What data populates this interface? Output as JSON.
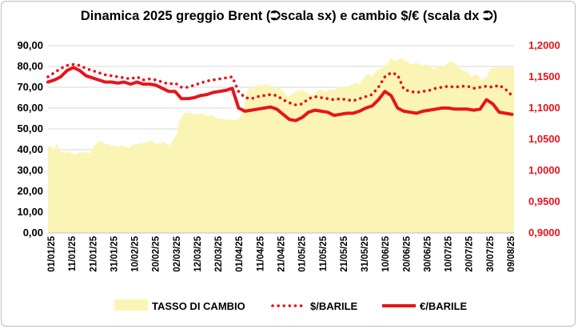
{
  "chart_data": {
    "type": "area",
    "title": "Dinamica 2025 greggio Brent (⮊scala sx) e cambio $/€ (scala dx ⮊)",
    "left_axis": {
      "min": 0,
      "max": 90,
      "step": 10,
      "ticks": [
        "0,00",
        "10,00",
        "20,00",
        "30,00",
        "40,00",
        "50,00",
        "60,00",
        "70,00",
        "80,00",
        "90,00"
      ]
    },
    "right_axis": {
      "min": 0.9,
      "max": 1.2,
      "step": 0.05,
      "ticks": [
        "0,9000",
        "0,9500",
        "1,0000",
        "1,0500",
        "1,1000",
        "1,1500",
        "1,2000"
      ],
      "color": "#e8141b"
    },
    "x_tick_labels": [
      "01/01/25",
      "11/01/25",
      "21/01/25",
      "31/01/25",
      "10/02/25",
      "20/02/25",
      "02/03/25",
      "12/03/25",
      "22/03/25",
      "01/04/25",
      "11/04/25",
      "21/04/25",
      "01/05/25",
      "11/05/25",
      "21/05/25",
      "31/05/25",
      "10/06/25",
      "20/06/25",
      "30/06/25",
      "10/07/25",
      "20/07/25",
      "30/07/25",
      "09/08/25"
    ],
    "x_range_days": [
      0,
      220
    ],
    "grid": true,
    "legend_position": "bottom",
    "series": [
      {
        "name": "TASSO DI CAMBIO",
        "axis": "right",
        "style": "area",
        "color": "#fbf5b5",
        "x_days": [
          0,
          2,
          3,
          4,
          6,
          8,
          9,
          10,
          13,
          14,
          17,
          20,
          22,
          24,
          25,
          27,
          28,
          30,
          31,
          33,
          35,
          38,
          40,
          42,
          44,
          45,
          47,
          49,
          51,
          53,
          55,
          57,
          59,
          61,
          62,
          63,
          64,
          65,
          67,
          70,
          73,
          75,
          77,
          79,
          81,
          82,
          84,
          86,
          88,
          90,
          92,
          93,
          94,
          95,
          97,
          99,
          100,
          103,
          105,
          107,
          109,
          111,
          113,
          116,
          118,
          120,
          123,
          125,
          127,
          129,
          131,
          133,
          135,
          137,
          140,
          143,
          145,
          147,
          149,
          151,
          153,
          155,
          158,
          160,
          162,
          164,
          166,
          168,
          170,
          172,
          174,
          176,
          178,
          180,
          182,
          184,
          186,
          188,
          190,
          192,
          194,
          196,
          198,
          200,
          202,
          205,
          207,
          209,
          211,
          213,
          215,
          217,
          219,
          220
        ],
        "values": [
          1.04,
          1.036,
          1.031,
          1.045,
          1.03,
          1.029,
          1.032,
          1.03,
          1.025,
          1.028,
          1.03,
          1.028,
          1.041,
          1.046,
          1.048,
          1.042,
          1.043,
          1.039,
          1.041,
          1.038,
          1.04,
          1.036,
          1.041,
          1.042,
          1.045,
          1.043,
          1.046,
          1.048,
          1.042,
          1.044,
          1.046,
          1.04,
          1.049,
          1.06,
          1.08,
          1.085,
          1.09,
          1.093,
          1.092,
          1.09,
          1.091,
          1.087,
          1.089,
          1.085,
          1.082,
          1.083,
          1.081,
          1.082,
          1.081,
          1.082,
          1.095,
          1.11,
          1.125,
          1.135,
          1.13,
          1.139,
          1.135,
          1.138,
          1.136,
          1.13,
          1.133,
          1.128,
          1.118,
          1.124,
          1.127,
          1.129,
          1.124,
          1.12,
          1.128,
          1.13,
          1.125,
          1.131,
          1.128,
          1.135,
          1.133,
          1.137,
          1.14,
          1.138,
          1.148,
          1.155,
          1.15,
          1.16,
          1.165,
          1.17,
          1.18,
          1.175,
          1.18,
          1.178,
          1.172,
          1.17,
          1.173,
          1.168,
          1.17,
          1.168,
          1.162,
          1.167,
          1.165,
          1.17,
          1.175,
          1.172,
          1.165,
          1.16,
          1.158,
          1.15,
          1.155,
          1.145,
          1.15,
          1.163,
          1.165,
          1.165,
          1.165,
          1.165,
          1.165,
          1.165
        ]
      },
      {
        "name": "$/BARILE",
        "axis": "left",
        "style": "dotted",
        "color": "#e8141b",
        "x_days": [
          0,
          3,
          6,
          9,
          12,
          15,
          18,
          21,
          24,
          27,
          30,
          33,
          36,
          39,
          42,
          45,
          48,
          51,
          54,
          57,
          60,
          63,
          66,
          69,
          72,
          75,
          78,
          81,
          84,
          87,
          90,
          93,
          96,
          99,
          102,
          105,
          108,
          111,
          114,
          117,
          120,
          123,
          126,
          129,
          132,
          135,
          138,
          141,
          144,
          147,
          150,
          153,
          156,
          159,
          162,
          165,
          168,
          171,
          174,
          177,
          180,
          183,
          186,
          189,
          192,
          195,
          198,
          201,
          204,
          207,
          210,
          213,
          216,
          219
        ],
        "values": [
          75.0,
          77.0,
          79.0,
          80.5,
          81.0,
          80.5,
          79.0,
          78.0,
          77.0,
          76.0,
          75.5,
          75.0,
          74.5,
          74.0,
          75.0,
          73.5,
          74.0,
          73.5,
          72.5,
          71.5,
          72.0,
          70.0,
          70.0,
          71.0,
          72.0,
          73.0,
          73.5,
          74.0,
          74.5,
          75.0,
          68.0,
          65.0,
          64.5,
          65.5,
          66.0,
          66.5,
          66.0,
          64.0,
          62.5,
          61.5,
          62.0,
          64.5,
          65.5,
          65.0,
          64.5,
          64.0,
          64.5,
          64.0,
          63.5,
          64.5,
          65.5,
          66.5,
          70.0,
          75.0,
          77.0,
          76.0,
          69.0,
          68.0,
          67.5,
          68.0,
          68.5,
          69.5,
          70.0,
          70.5,
          70.0,
          70.5,
          70.5,
          69.5,
          70.0,
          70.5,
          70.0,
          71.0,
          69.0,
          66.0
        ]
      },
      {
        "name": "€/BARILE",
        "axis": "left",
        "style": "line",
        "color": "#e8141b",
        "x_days": [
          0,
          3,
          6,
          9,
          12,
          15,
          18,
          21,
          24,
          27,
          30,
          33,
          36,
          39,
          42,
          45,
          48,
          51,
          54,
          57,
          60,
          63,
          66,
          69,
          72,
          75,
          78,
          81,
          84,
          87,
          90,
          93,
          96,
          99,
          102,
          105,
          108,
          111,
          114,
          117,
          120,
          123,
          126,
          129,
          132,
          135,
          138,
          141,
          144,
          147,
          150,
          153,
          156,
          159,
          162,
          165,
          168,
          171,
          174,
          177,
          180,
          183,
          186,
          189,
          192,
          195,
          198,
          201,
          204,
          207,
          210,
          213,
          216,
          219
        ],
        "values": [
          72.5,
          73.5,
          75.0,
          78.0,
          79.5,
          78.0,
          75.5,
          74.5,
          73.5,
          72.5,
          72.5,
          72.0,
          72.5,
          71.5,
          72.5,
          71.5,
          71.5,
          71.0,
          69.5,
          68.0,
          68.0,
          64.5,
          64.5,
          65.0,
          66.0,
          66.5,
          67.5,
          68.0,
          68.5,
          69.5,
          60.0,
          58.5,
          59.0,
          59.5,
          60.0,
          60.5,
          59.5,
          57.0,
          54.5,
          54.0,
          55.5,
          58.0,
          59.0,
          58.5,
          58.0,
          56.5,
          57.0,
          57.5,
          57.5,
          58.5,
          60.0,
          61.0,
          64.0,
          68.0,
          66.0,
          60.0,
          58.5,
          58.0,
          57.5,
          58.5,
          59.0,
          59.5,
          60.0,
          60.0,
          59.5,
          59.5,
          59.5,
          59.0,
          59.5,
          64.0,
          62.0,
          58.0,
          57.5,
          57.0
        ]
      }
    ]
  }
}
